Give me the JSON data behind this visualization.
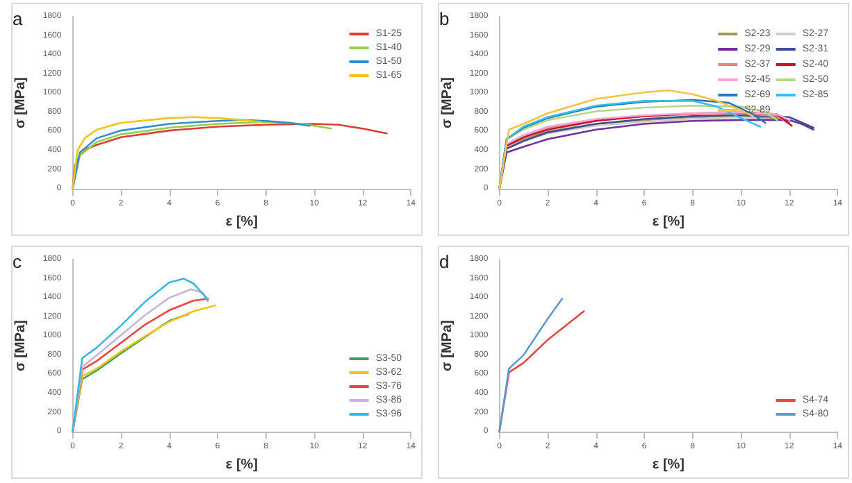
{
  "chart_data": [
    {
      "type": "line",
      "title": "a",
      "xlabel": "ε [%]",
      "ylabel": "σ [MPa]",
      "xlim": [
        0,
        14
      ],
      "xticks": [
        0,
        2,
        4,
        6,
        8,
        10,
        12,
        14
      ],
      "ylim": [
        0,
        1800
      ],
      "yticks": [
        0,
        200,
        400,
        600,
        800,
        1000,
        1200,
        1400,
        1600,
        1800
      ],
      "grid": false,
      "legend": "top right",
      "line_style": "solid",
      "series": [
        {
          "name": "S1-25",
          "color": "#e03c31",
          "x": [
            0,
            0.1,
            0.3,
            0.6,
            1,
            2,
            4,
            6,
            8,
            10,
            11,
            12,
            13
          ],
          "values": [
            0,
            250,
            350,
            420,
            460,
            540,
            610,
            650,
            670,
            680,
            670,
            630,
            580
          ]
        },
        {
          "name": "S1-40",
          "color": "#92d050",
          "x": [
            0,
            0.3,
            1,
            2,
            4,
            6,
            8,
            9.5,
            10.7
          ],
          "values": [
            0,
            350,
            490,
            570,
            640,
            680,
            700,
            680,
            630
          ]
        },
        {
          "name": "S1-50",
          "color": "#2f8fce",
          "x": [
            0,
            0.3,
            1,
            2,
            4,
            6,
            7,
            8,
            9,
            9.8
          ],
          "values": [
            0,
            380,
            530,
            610,
            680,
            710,
            720,
            710,
            690,
            660
          ]
        },
        {
          "name": "S1-65",
          "color": "#f5c218",
          "x": [
            0,
            0.2,
            0.5,
            1,
            2,
            4,
            5,
            6,
            7,
            7.8
          ],
          "values": [
            0,
            400,
            530,
            620,
            690,
            740,
            750,
            740,
            720,
            700
          ]
        }
      ]
    },
    {
      "type": "line",
      "title": "b",
      "xlabel": "ε [%]",
      "ylabel": "σ [MPa]",
      "xlim": [
        0,
        14
      ],
      "xticks": [
        0,
        2,
        4,
        6,
        8,
        10,
        12,
        14
      ],
      "ylim": [
        0,
        1800
      ],
      "yticks": [
        0,
        200,
        400,
        600,
        800,
        1000,
        1200,
        1400,
        1600,
        1800
      ],
      "grid": false,
      "legend": "top right",
      "line_style": "solid",
      "series": [
        {
          "name": "S2-23",
          "color": "#9b9b5a",
          "x": [
            0,
            0.3,
            1,
            2,
            4,
            6,
            8,
            10,
            11.5,
            12
          ],
          "values": [
            0,
            450,
            520,
            600,
            680,
            720,
            750,
            760,
            740,
            700
          ]
        },
        {
          "name": "S2-27",
          "color": "#cfcfcf",
          "x": [
            0,
            0.3,
            1,
            2,
            4,
            6,
            8,
            10,
            11.5
          ],
          "values": [
            0,
            430,
            500,
            580,
            660,
            700,
            730,
            750,
            720
          ]
        },
        {
          "name": "S2-29",
          "color": "#7030a0",
          "x": [
            0,
            0.3,
            1,
            2,
            4,
            6,
            8,
            10,
            12,
            12.5,
            13
          ],
          "values": [
            0,
            380,
            440,
            520,
            620,
            680,
            710,
            720,
            720,
            680,
            620
          ]
        },
        {
          "name": "S2-31",
          "color": "#3f4f8f",
          "x": [
            0,
            0.3,
            1,
            2,
            4,
            6,
            8,
            10,
            12,
            13
          ],
          "values": [
            0,
            420,
            500,
            590,
            680,
            730,
            760,
            770,
            750,
            640
          ]
        },
        {
          "name": "S2-37",
          "color": "#f08080",
          "x": [
            0,
            0.3,
            1,
            2,
            4,
            6,
            8,
            10,
            11.5,
            12
          ],
          "values": [
            0,
            460,
            560,
            640,
            720,
            760,
            780,
            790,
            760,
            680
          ]
        },
        {
          "name": "S2-40",
          "color": "#c8102e",
          "x": [
            0,
            0.3,
            1,
            2,
            4,
            6,
            8,
            10,
            11.5,
            12.1
          ],
          "values": [
            0,
            450,
            540,
            620,
            710,
            760,
            790,
            800,
            780,
            660
          ]
        },
        {
          "name": "S2-45",
          "color": "#f4a6d7",
          "x": [
            0,
            0.3,
            1,
            2,
            4,
            6,
            8,
            10,
            11.5,
            12
          ],
          "values": [
            0,
            470,
            560,
            650,
            730,
            770,
            790,
            800,
            780,
            720
          ]
        },
        {
          "name": "S2-50",
          "color": "#b4d88a",
          "x": [
            0,
            0.3,
            1,
            2,
            4,
            6,
            8,
            10,
            11,
            11.5
          ],
          "values": [
            0,
            520,
            620,
            720,
            810,
            850,
            870,
            860,
            800,
            720
          ]
        },
        {
          "name": "S2-69",
          "color": "#2e75b6",
          "x": [
            0,
            0.3,
            1,
            2,
            4,
            6,
            8,
            9.5,
            10.5,
            11
          ],
          "values": [
            0,
            520,
            640,
            740,
            860,
            910,
            930,
            900,
            780,
            690
          ]
        },
        {
          "name": "S2-85",
          "color": "#33c1e8",
          "x": [
            0,
            0.3,
            1,
            2,
            4,
            6,
            8,
            9,
            10,
            10.8
          ],
          "values": [
            0,
            520,
            650,
            750,
            870,
            920,
            920,
            860,
            740,
            650
          ]
        },
        {
          "name": "S2-89",
          "color": "#f5c242",
          "x": [
            0,
            0.4,
            1,
            2,
            4,
            6,
            7,
            8,
            9,
            10,
            10.5
          ],
          "values": [
            0,
            620,
            680,
            790,
            940,
            1010,
            1030,
            990,
            920,
            820,
            760
          ]
        }
      ]
    },
    {
      "type": "line",
      "title": "c",
      "xlabel": "ε [%]",
      "ylabel": "σ [MPa]",
      "xlim": [
        0,
        14
      ],
      "xticks": [
        0,
        2,
        4,
        6,
        8,
        10,
        12,
        14
      ],
      "ylim": [
        0,
        1800
      ],
      "yticks": [
        0,
        200,
        400,
        600,
        800,
        1000,
        1200,
        1400,
        1600,
        1800
      ],
      "grid": false,
      "legend": "bottom right",
      "line_style": "solid",
      "series": [
        {
          "name": "S3-50",
          "color": "#3aa655",
          "x": [
            0,
            0.4,
            1,
            2,
            3,
            4,
            4.8
          ],
          "values": [
            0,
            550,
            640,
            820,
            990,
            1160,
            1230
          ]
        },
        {
          "name": "S3-62",
          "color": "#f5c218",
          "x": [
            0,
            0.4,
            1,
            2,
            3,
            4,
            5,
            5.9
          ],
          "values": [
            0,
            580,
            660,
            840,
            1000,
            1150,
            1260,
            1320
          ]
        },
        {
          "name": "S3-76",
          "color": "#e8453c",
          "x": [
            0,
            0.4,
            1,
            2,
            3,
            4,
            5,
            5.6
          ],
          "values": [
            0,
            650,
            740,
            930,
            1120,
            1270,
            1370,
            1390
          ]
        },
        {
          "name": "S3-86",
          "color": "#c8b4d8",
          "x": [
            0,
            0.4,
            1,
            2,
            3,
            4,
            4.9,
            5.4,
            5.6
          ],
          "values": [
            0,
            680,
            800,
            1010,
            1220,
            1400,
            1490,
            1450,
            1360
          ]
        },
        {
          "name": "S3-96",
          "color": "#35b6e6",
          "x": [
            0,
            0.4,
            1,
            2,
            3,
            4,
            4.6,
            5,
            5.6
          ],
          "values": [
            0,
            770,
            880,
            1110,
            1360,
            1560,
            1600,
            1550,
            1380
          ]
        }
      ]
    },
    {
      "type": "line",
      "title": "d",
      "xlabel": "ε [%]",
      "ylabel": "σ [MPa]",
      "xlim": [
        0,
        14
      ],
      "xticks": [
        0,
        2,
        4,
        6,
        8,
        10,
        12,
        14
      ],
      "ylim": [
        0,
        1800
      ],
      "yticks": [
        0,
        200,
        400,
        600,
        800,
        1000,
        1200,
        1400,
        1600,
        1800
      ],
      "grid": false,
      "legend": "bottom right",
      "line_style": "solid",
      "series": [
        {
          "name": "S4-74",
          "color": "#e8453c",
          "x": [
            0,
            0.4,
            1,
            2,
            3,
            3.5
          ],
          "values": [
            0,
            620,
            720,
            960,
            1160,
            1260
          ]
        },
        {
          "name": "S4-80",
          "color": "#5b9bd5",
          "x": [
            0,
            0.4,
            1,
            2,
            2.6
          ],
          "values": [
            0,
            660,
            800,
            1180,
            1390
          ]
        }
      ]
    }
  ]
}
